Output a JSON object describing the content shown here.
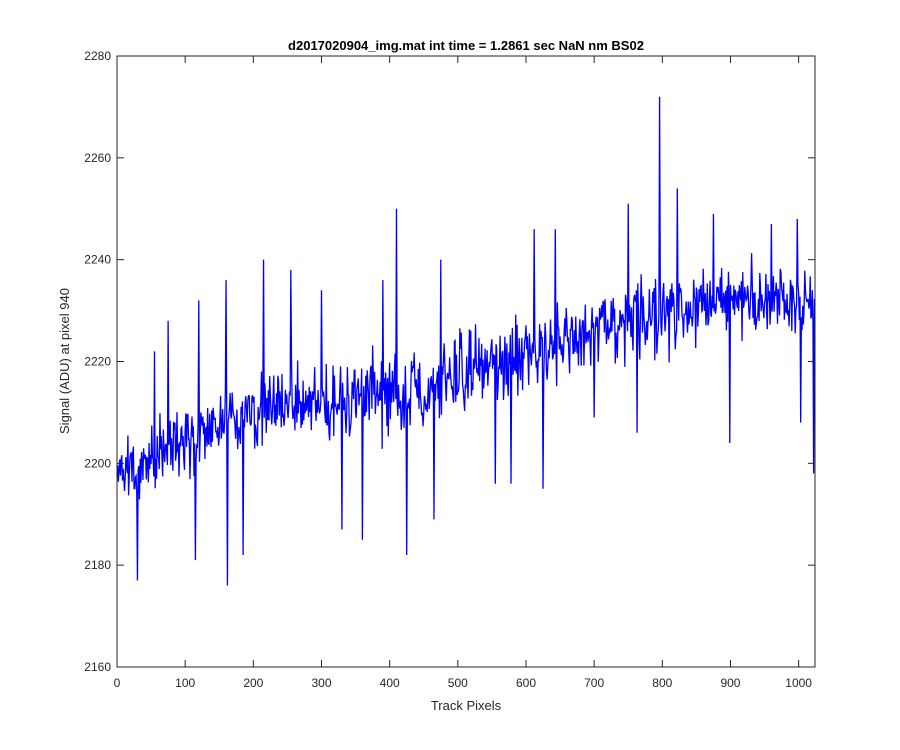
{
  "chart_data": {
    "type": "line",
    "title": "d2017020904_img.mat int time = 1.2861 sec  NaN nm BS02",
    "xlabel": "Track Pixels",
    "ylabel": "Signal (ADU) at pixel 940",
    "xlim": [
      0,
      1024
    ],
    "ylim": [
      2160,
      2280
    ],
    "xticks": [
      0,
      100,
      200,
      300,
      400,
      500,
      600,
      700,
      800,
      900,
      1000
    ],
    "yticks": [
      2160,
      2180,
      2200,
      2220,
      2240,
      2260,
      2280
    ],
    "grid": false,
    "legend": "none",
    "line_color": "#0000ff",
    "series": [
      {
        "x": [
          0,
          30,
          60,
          90,
          120,
          150,
          180,
          210,
          240,
          270,
          300,
          330,
          360,
          390,
          420,
          450,
          480,
          510,
          540,
          570,
          600,
          630,
          660,
          690,
          720,
          750,
          780,
          810,
          840,
          870,
          900,
          930,
          960,
          990,
          1020
        ],
        "values": [
          2199,
          2199,
          2201,
          2204,
          2206,
          2208,
          2209,
          2210,
          2211,
          2212,
          2212,
          2213,
          2213,
          2213,
          2214,
          2215,
          2217,
          2218,
          2219,
          2220,
          2221,
          2223,
          2224,
          2225,
          2226,
          2227,
          2229,
          2230,
          2231,
          2231,
          2232,
          2232,
          2232,
          2232,
          2232
        ],
        "noise_band": [
          9,
          9,
          10,
          10,
          11,
          11,
          11,
          11,
          11,
          11,
          11,
          11,
          11,
          11,
          11,
          11,
          11,
          11,
          11,
          11,
          11,
          11,
          11,
          11,
          11,
          11,
          11,
          11,
          11,
          11,
          11,
          10,
          9,
          8,
          8
        ]
      }
    ],
    "spikes": [
      {
        "x": 30,
        "y": 2177
      },
      {
        "x": 55,
        "y": 2222
      },
      {
        "x": 75,
        "y": 2228
      },
      {
        "x": 115,
        "y": 2181
      },
      {
        "x": 120,
        "y": 2232
      },
      {
        "x": 160,
        "y": 2236
      },
      {
        "x": 162,
        "y": 2176
      },
      {
        "x": 185,
        "y": 2182
      },
      {
        "x": 215,
        "y": 2240
      },
      {
        "x": 255,
        "y": 2238
      },
      {
        "x": 300,
        "y": 2234
      },
      {
        "x": 330,
        "y": 2187
      },
      {
        "x": 360,
        "y": 2185
      },
      {
        "x": 390,
        "y": 2236
      },
      {
        "x": 410,
        "y": 2250
      },
      {
        "x": 425,
        "y": 2182
      },
      {
        "x": 465,
        "y": 2189
      },
      {
        "x": 475,
        "y": 2240
      },
      {
        "x": 555,
        "y": 2196
      },
      {
        "x": 578,
        "y": 2196
      },
      {
        "x": 612,
        "y": 2246
      },
      {
        "x": 625,
        "y": 2195
      },
      {
        "x": 643,
        "y": 2246
      },
      {
        "x": 700,
        "y": 2209
      },
      {
        "x": 750,
        "y": 2251
      },
      {
        "x": 763,
        "y": 2206
      },
      {
        "x": 796,
        "y": 2272
      },
      {
        "x": 822,
        "y": 2254
      },
      {
        "x": 875,
        "y": 2249
      },
      {
        "x": 899,
        "y": 2204
      },
      {
        "x": 960,
        "y": 2247
      },
      {
        "x": 998,
        "y": 2248
      },
      {
        "x": 1003,
        "y": 2208
      },
      {
        "x": 1022,
        "y": 2198
      }
    ]
  }
}
